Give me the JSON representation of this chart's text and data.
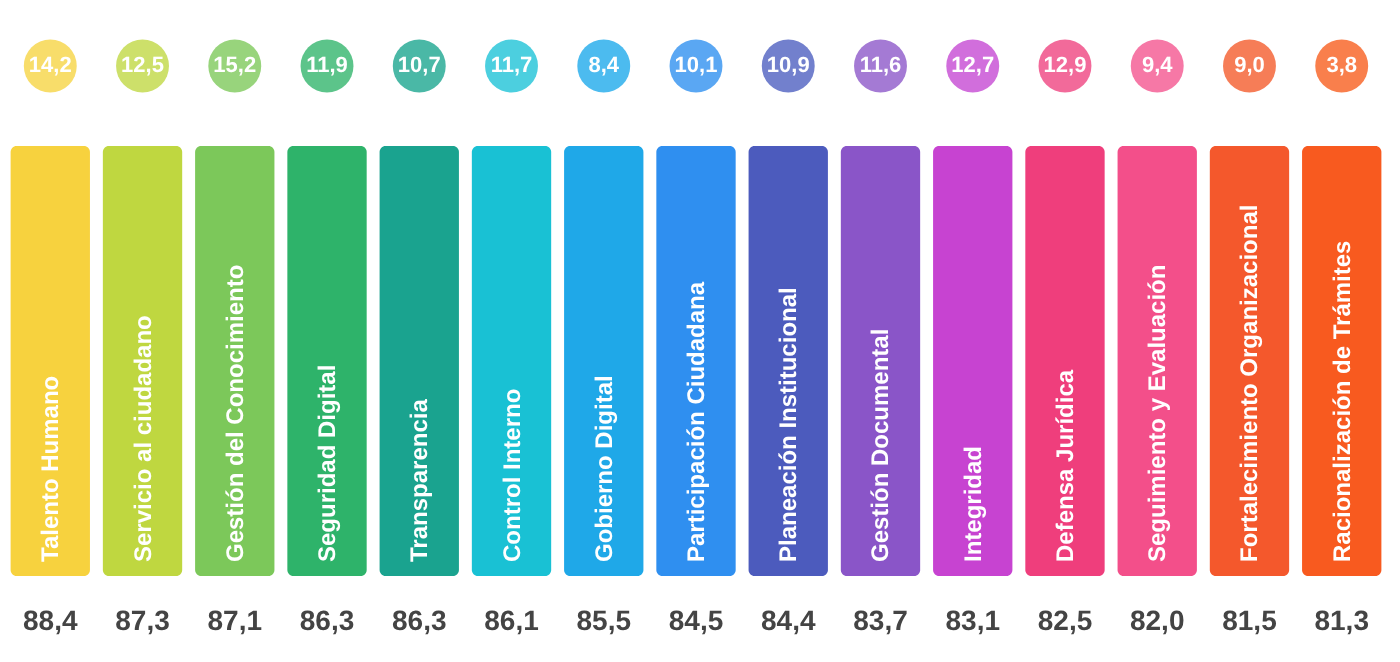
{
  "chart_data": {
    "type": "other",
    "categories": [
      "Talento Humano",
      "Servicio al ciudadano",
      "Gestión del Conocimiento",
      "Seguridad Digital",
      "Transparencia",
      "Control Interno",
      "Gobierno Digital",
      "Participación Ciudadana",
      "Planeación Institucional",
      "Gestión Documental",
      "Integridad",
      "Defensa Jurídica",
      "Seguimiento y Evaluación",
      "Fortalecimiento Organizacional",
      "Racionalización de Trámites"
    ],
    "colors": [
      "#f7d23e",
      "#bfd740",
      "#7cc85a",
      "#2eb36a",
      "#1aa38f",
      "#19c1d4",
      "#1fa8e8",
      "#2f8ff0",
      "#4c5bbd",
      "#8a55c8",
      "#c743d1",
      "#ef3e7c",
      "#f34f8a",
      "#f4582c",
      "#f85a1f"
    ],
    "series": [
      {
        "colors": [
          "#f8dd6a",
          "#cde06a",
          "#98d47c",
          "#5cc48a",
          "#4ab8a6",
          "#4ccfdf",
          "#4cbbef",
          "#5aa7f3",
          "#7280cd",
          "#a47ad4",
          "#d16edc",
          "#f26a9a",
          "#f678a6",
          "#f67d57",
          "#f97f4c"
        ],
        "values": [
          14.2,
          12.5,
          15.2,
          11.9,
          10.7,
          11.7,
          8.4,
          10.1,
          10.9,
          11.6,
          12.7,
          12.9,
          9.4,
          9.0,
          3.8
        ],
        "value_labels": [
          "14,2",
          "12,5",
          "15,2",
          "11,9",
          "10,7",
          "11,7",
          "8,4",
          "10,1",
          "10,9",
          "11,6",
          "12,7",
          "12,9",
          "9,4",
          "9,0",
          "3,8"
        ]
      },
      {
        "color": "#444444",
        "values": [
          88.4,
          87.3,
          87.1,
          86.3,
          86.3,
          86.1,
          85.5,
          84.5,
          84.4,
          83.7,
          83.1,
          82.5,
          82.0,
          81.5,
          81.3
        ],
        "value_labels": [
          "88,4",
          "87,3",
          "87,1",
          "86,3",
          "86,3",
          "86,1",
          "85,5",
          "84,5",
          "84,4",
          "83,7",
          "83,1",
          "82,5",
          "82,0",
          "81,5",
          "81,3"
        ]
      }
    ]
  }
}
